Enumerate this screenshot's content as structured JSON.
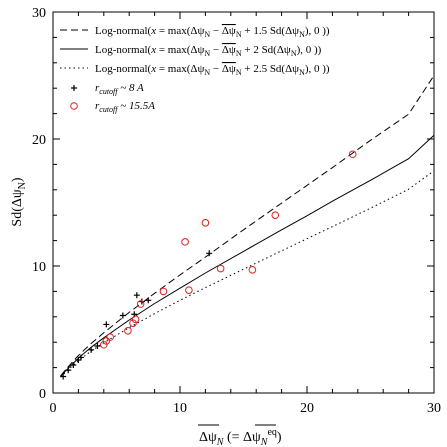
{
  "chart_data": {
    "type": "scatter",
    "xlim": [
      0,
      30
    ],
    "ylim": [
      0,
      30
    ],
    "x_ticks": [
      0,
      10,
      20,
      30
    ],
    "y_ticks": [
      0,
      10,
      20,
      30
    ],
    "xlabel": "ΔψN (= ΔψNeq)",
    "ylabel": "Sd(ΔψN)",
    "legend_position": "top-left",
    "series": [
      {
        "name": "Log-normal(x = max(ΔψN − ΔψN + 1.5 Sd(ΔψN), 0 ))",
        "style": "dashed",
        "color": "#000000",
        "x": [
          0.6,
          1,
          2,
          3,
          4,
          5,
          6,
          8,
          10,
          12,
          15,
          18,
          20,
          22,
          25,
          28,
          30
        ],
        "y": [
          1.35,
          1.85,
          2.95,
          3.9,
          4.75,
          5.55,
          6.35,
          7.85,
          9.3,
          10.7,
          12.85,
          14.95,
          16.35,
          17.75,
          19.9,
          21.95,
          25.0
        ]
      },
      {
        "name": "Log-normal(x = max(ΔψN − ΔψN + 2 Sd(ΔψN), 0 ))",
        "style": "solid",
        "color": "#000000",
        "x": [
          0.6,
          1,
          2,
          3,
          4,
          5,
          6,
          8,
          10,
          12,
          15,
          18,
          20,
          22,
          25,
          28,
          30
        ],
        "y": [
          1.3,
          1.75,
          2.75,
          3.6,
          4.35,
          5.05,
          5.75,
          7.05,
          8.25,
          9.45,
          11.15,
          12.85,
          13.95,
          15.1,
          16.75,
          18.45,
          20.3
        ]
      },
      {
        "name": "Log-normal(x = max(ΔψN − ΔψN + 2.5 Sd(ΔψN), 0 ))",
        "style": "dotted",
        "color": "#000000",
        "x": [
          0.6,
          1,
          2,
          3,
          4,
          5,
          6,
          8,
          10,
          12,
          15,
          18,
          20,
          22,
          25,
          28,
          30
        ],
        "y": [
          1.25,
          1.65,
          2.55,
          3.3,
          3.95,
          4.55,
          5.15,
          6.25,
          7.3,
          8.3,
          9.75,
          11.2,
          12.15,
          13.1,
          14.55,
          16.05,
          17.5
        ]
      },
      {
        "name": "r_cutoff ~ 8 A",
        "style": "plus",
        "color": "#000000",
        "x": [
          0.8,
          1.2,
          1.6,
          2.0,
          2.2,
          3.0,
          3.5,
          4.2,
          5.5,
          6.4,
          6.6,
          7.0,
          7.5,
          12.3
        ],
        "y": [
          1.3,
          1.8,
          2.2,
          2.6,
          2.8,
          3.4,
          3.7,
          5.4,
          6.1,
          6.2,
          7.7,
          7.2,
          7.3,
          11.0
        ]
      },
      {
        "name": "r_cutoff ~ 15.5A",
        "style": "circle",
        "color": "#e02020",
        "x": [
          4.0,
          4.2,
          4.5,
          5.9,
          6.3,
          6.5,
          6.9,
          8.7,
          10.4,
          10.7,
          12.0,
          13.2,
          15.7,
          17.5,
          23.6
        ],
        "y": [
          3.8,
          4.1,
          4.4,
          4.9,
          5.5,
          5.8,
          7.0,
          8.0,
          11.9,
          8.1,
          13.4,
          9.8,
          9.7,
          14.0,
          18.8
        ]
      }
    ]
  }
}
